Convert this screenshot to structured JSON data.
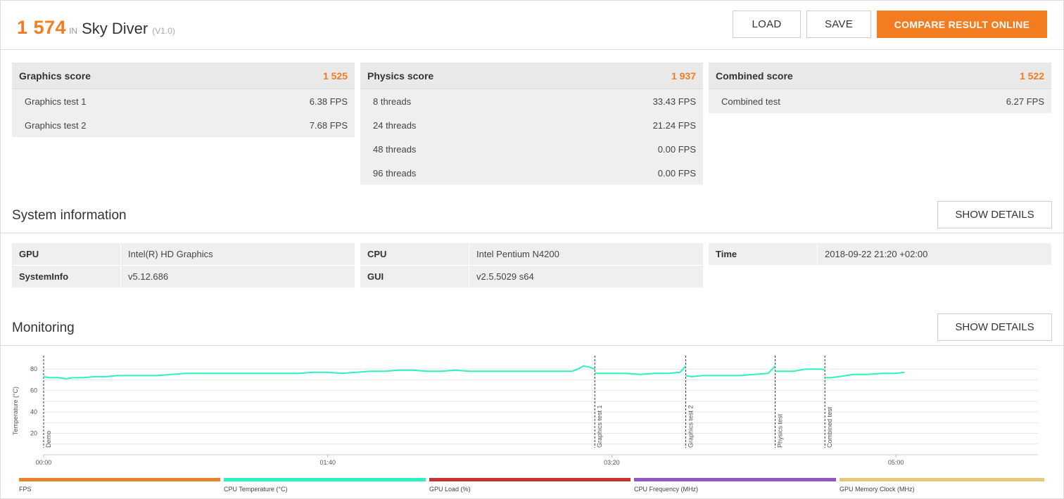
{
  "header": {
    "score": "1 574",
    "in_label": "IN",
    "benchmark_name": "Sky Diver",
    "version": "(V1.0)",
    "load_label": "LOAD",
    "save_label": "SAVE",
    "compare_label": "COMPARE RESULT ONLINE"
  },
  "scores": [
    {
      "title": "Graphics score",
      "value": "1 525",
      "rows": [
        {
          "label": "Graphics test 1",
          "value": "6.38 FPS"
        },
        {
          "label": "Graphics test 2",
          "value": "7.68 FPS"
        }
      ]
    },
    {
      "title": "Physics score",
      "value": "1 937",
      "rows": [
        {
          "label": "8 threads",
          "value": "33.43 FPS"
        },
        {
          "label": "24 threads",
          "value": "21.24 FPS"
        },
        {
          "label": "48 threads",
          "value": "0.00 FPS"
        },
        {
          "label": "96 threads",
          "value": "0.00 FPS"
        }
      ]
    },
    {
      "title": "Combined score",
      "value": "1 522",
      "rows": [
        {
          "label": "Combined test",
          "value": "6.27 FPS"
        }
      ]
    }
  ],
  "system": {
    "title": "System information",
    "details_label": "SHOW DETAILS",
    "gpu_key": "GPU",
    "gpu_val": "Intel(R) HD Graphics",
    "sysinfo_key": "SystemInfo",
    "sysinfo_val": "v5.12.686",
    "cpu_key": "CPU",
    "cpu_val": "Intel Pentium N4200",
    "gui_key": "GUI",
    "gui_val": "v2.5.5029 s64",
    "time_key": "Time",
    "time_val": "2018-09-22 21:20 +02:00"
  },
  "monitoring": {
    "title": "Monitoring",
    "details_label": "SHOW DETAILS"
  },
  "chart_data": {
    "type": "line",
    "ylabel": "Temperature (°C)",
    "ylim": [
      0,
      90
    ],
    "xlim": [
      0,
      350
    ],
    "yticks": [
      20,
      40,
      60,
      80
    ],
    "xticks": [
      {
        "t": 0,
        "label": "00:00"
      },
      {
        "t": 100,
        "label": "01:40"
      },
      {
        "t": 200,
        "label": "03:20"
      },
      {
        "t": 300,
        "label": "05:00"
      }
    ],
    "markers": [
      {
        "t": 0,
        "label": "Demo"
      },
      {
        "t": 194,
        "label": "Graphics test 1"
      },
      {
        "t": 226,
        "label": "Graphics test 2"
      },
      {
        "t": 257.5,
        "label": "Physics test"
      },
      {
        "t": 275,
        "label": "Combined test"
      }
    ],
    "series": [
      {
        "name": "CPU Temperature (°C)",
        "color": "#2ff0c0",
        "segments": [
          {
            "x": [
              0,
              2,
              5,
              8,
              10,
              14,
              18,
              22,
              26,
              30,
              36,
              40,
              45,
              50,
              55,
              60,
              65,
              70,
              75,
              80,
              85,
              90,
              95,
              100,
              105,
              110,
              115,
              120,
              125,
              130,
              135,
              140,
              145,
              150,
              155,
              160,
              165,
              170,
              175,
              180,
              183,
              186,
              188,
              190,
              192,
              194
            ],
            "y": [
              73,
              72,
              72,
              71,
              72,
              72,
              73,
              73,
              74,
              74,
              74,
              74,
              75,
              76,
              76,
              76,
              76,
              76,
              76,
              76,
              76,
              76,
              77,
              77,
              76,
              77,
              78,
              78,
              79,
              79,
              78,
              78,
              79,
              78,
              78,
              78,
              78,
              78,
              78,
              78,
              78,
              78,
              80,
              83,
              82,
              80
            ]
          },
          {
            "x": [
              194,
              196,
              200,
              205,
              210,
              215,
              220,
              224,
              226
            ],
            "y": [
              76,
              76,
              76,
              76,
              75,
              76,
              76,
              77,
              83
            ]
          },
          {
            "x": [
              226,
              228,
              232,
              236,
              240,
              245,
              250,
              255,
              257.5
            ],
            "y": [
              74,
              73,
              74,
              74,
              74,
              74,
              75,
              76,
              83
            ]
          },
          {
            "x": [
              257.5,
              260,
              264,
              268,
              272,
              274,
              275
            ],
            "y": [
              78,
              78,
              78,
              80,
              80,
              80,
              79
            ]
          },
          {
            "x": [
              275,
              277,
              280,
              285,
              290,
              295,
              300,
              303
            ],
            "y": [
              72,
              72,
              73,
              75,
              75,
              76,
              76,
              77
            ]
          }
        ]
      }
    ],
    "legend": [
      "FPS",
      "CPU Temperature (°C)",
      "GPU Load (%)",
      "CPU Frequency (MHz)",
      "GPU Memory Clock (MHz)"
    ],
    "legend_colors": [
      "#e8822a",
      "#2ff0c0",
      "#c83232",
      "#9155c8",
      "#e8c878"
    ]
  }
}
